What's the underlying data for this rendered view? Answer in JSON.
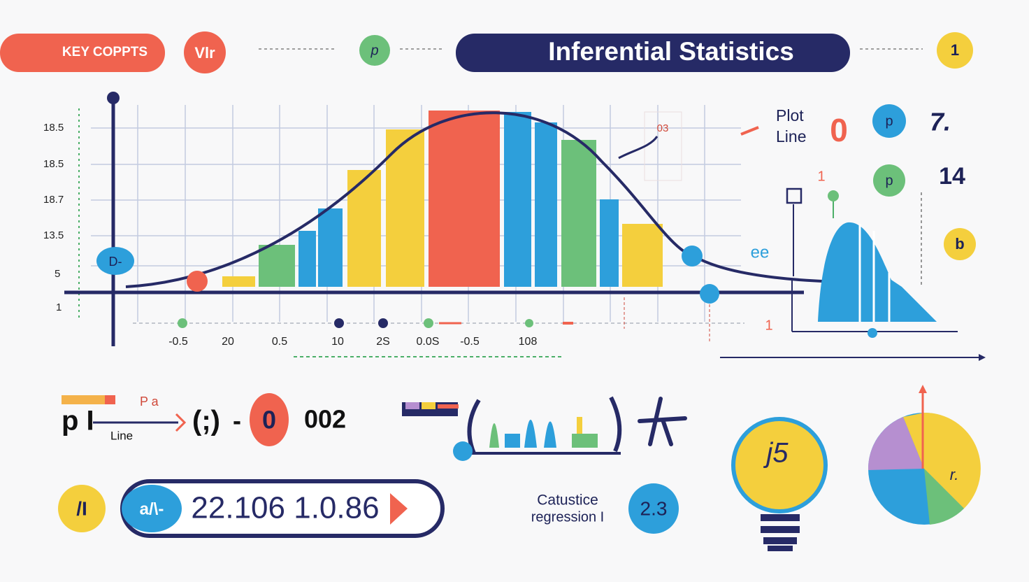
{
  "header": {
    "badge": "KEY COPPTS",
    "icon": "Vlr",
    "node": "p",
    "title": "Inferential Statistics",
    "step": "1"
  },
  "chart": {
    "y_labels": [
      "18.5",
      "18.5",
      "18.7",
      "13.5",
      "5",
      "1"
    ],
    "marker": "D-",
    "x_labels": [
      "-0.5",
      "20",
      "0.5",
      "10",
      "2S",
      "0.0S",
      "-0.5",
      "108"
    ],
    "note": "03"
  },
  "side": {
    "plot": "Plot",
    "line": "Line",
    "zero": "0",
    "p1": "p",
    "seven": "7.",
    "one": "1",
    "p2": "p",
    "fourteen": "14",
    "ee": "ee",
    "b": "b",
    "one_b": "1"
  },
  "formula": {
    "pa": "P a",
    "p": "p I",
    "line": "Line",
    "paren": "(;)",
    "minus": "-",
    "zero": "0",
    "value": "002"
  },
  "result": {
    "icon": "/I",
    "pill": "a/\\-",
    "value": "22.106 1.0.86"
  },
  "regression": {
    "line1": "Catustice",
    "line2": "regression I",
    "value": "2.3"
  },
  "bulb": {
    "label": "j5"
  },
  "pie": {
    "label": "r."
  }
}
